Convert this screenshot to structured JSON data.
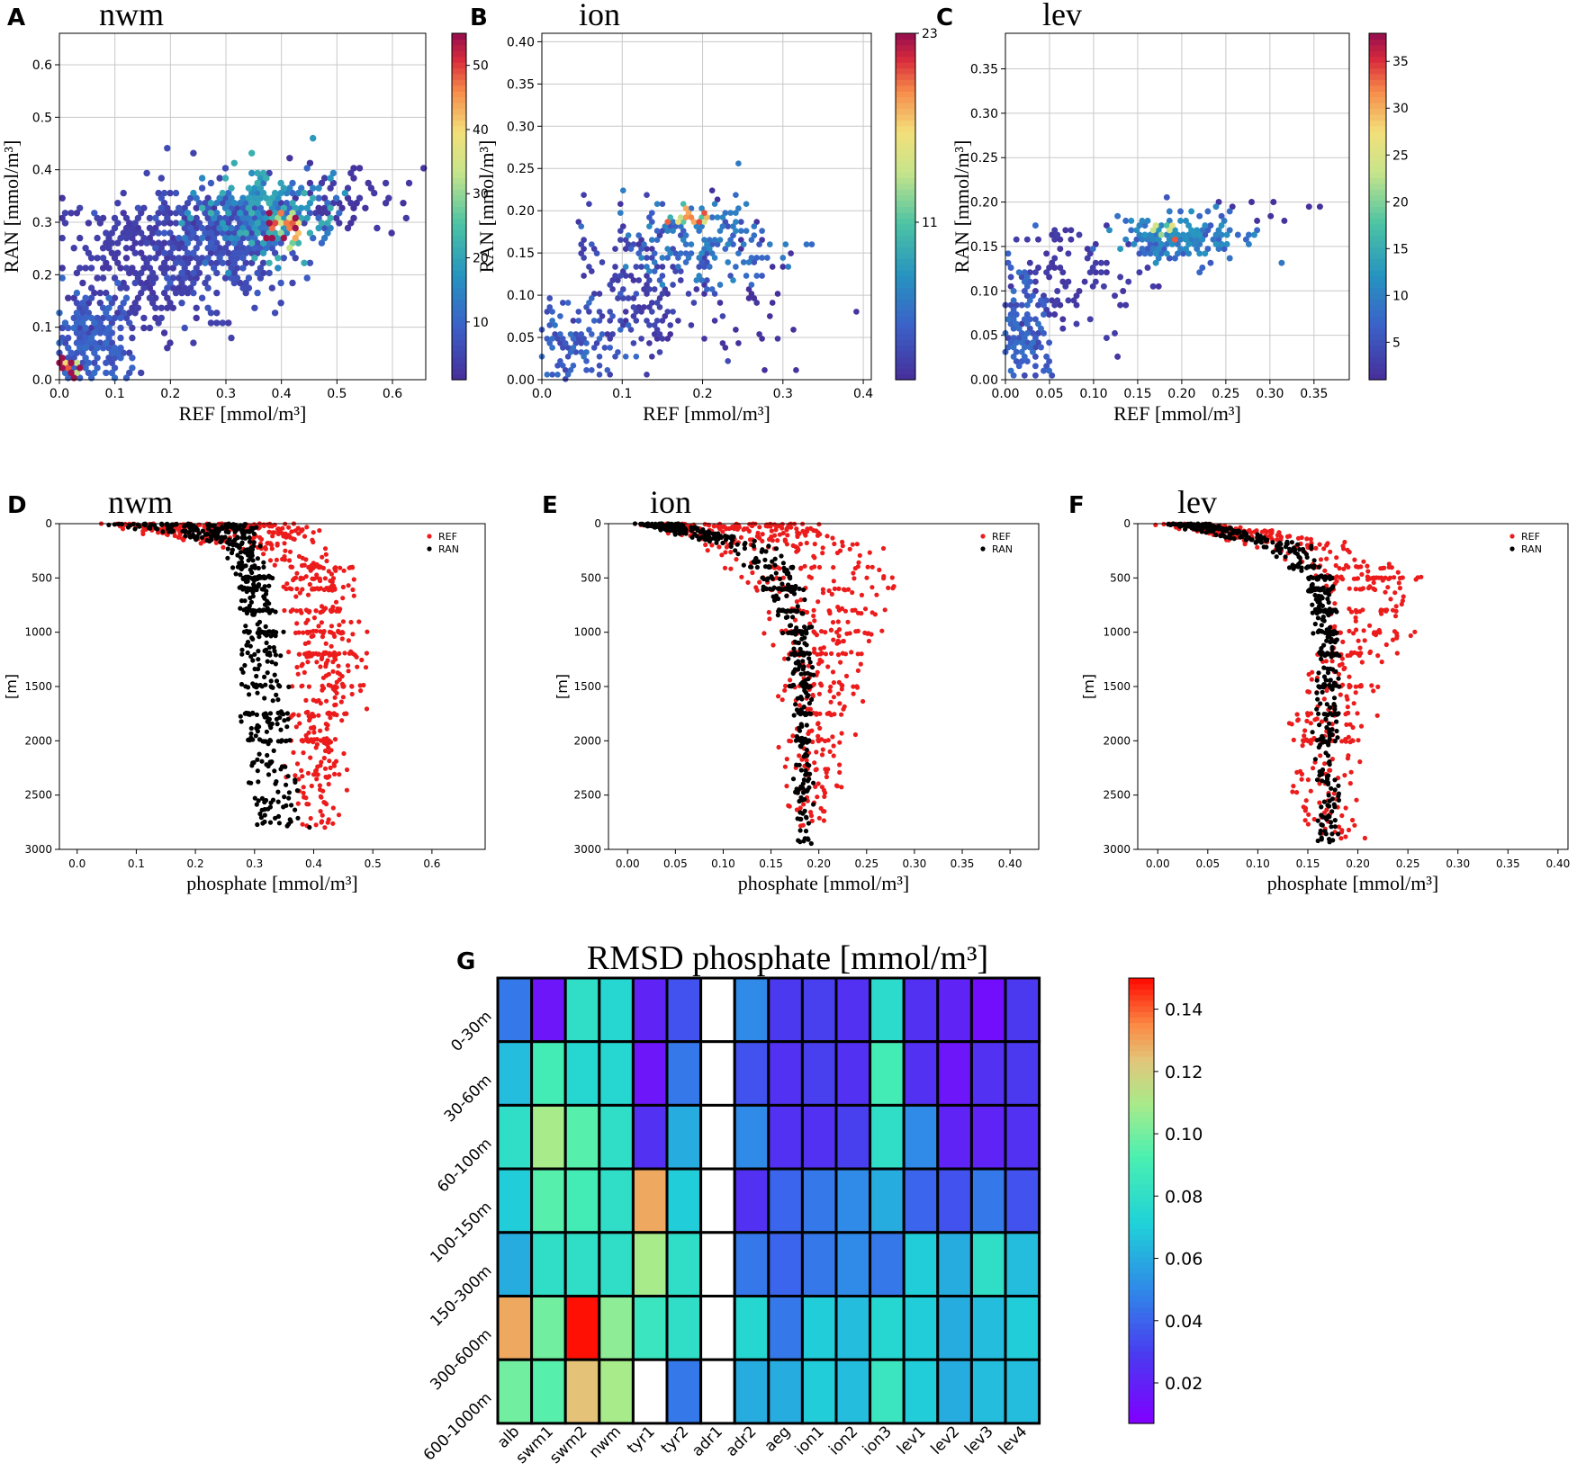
{
  "chart_data": [
    {
      "panel": "A",
      "title": "nwm",
      "type": "hexbin",
      "xlabel": "REF [mmol/m³]",
      "ylabel": "RAN [mmol/m³]",
      "xlim": [
        0,
        0.66
      ],
      "ylim": [
        0,
        0.66
      ],
      "xticks": [
        "0.0",
        "0.1",
        "0.2",
        "0.3",
        "0.4",
        "0.5",
        "0.6"
      ],
      "yticks": [
        "0.0",
        "0.1",
        "0.2",
        "0.3",
        "0.4",
        "0.5",
        "0.6"
      ],
      "colorbar": {
        "ticks": [
          "10",
          "20",
          "30",
          "40",
          "50"
        ],
        "tick_values": [
          10,
          20,
          30,
          40,
          50
        ],
        "range": [
          1,
          55
        ]
      },
      "clusters": [
        {
          "x": 0.05,
          "y": 0.06,
          "sx": 0.04,
          "sy": 0.06,
          "n": 260,
          "c": 8
        },
        {
          "x": 0.15,
          "y": 0.22,
          "sx": 0.08,
          "sy": 0.07,
          "n": 320,
          "c": 3
        },
        {
          "x": 0.3,
          "y": 0.27,
          "sx": 0.07,
          "sy": 0.05,
          "n": 320,
          "c": 6
        },
        {
          "x": 0.38,
          "y": 0.32,
          "sx": 0.06,
          "sy": 0.04,
          "n": 220,
          "c": 16
        },
        {
          "x": 0.4,
          "y": 0.29,
          "sx": 0.02,
          "sy": 0.015,
          "n": 30,
          "c": 45
        },
        {
          "x": 0.02,
          "y": 0.02,
          "sx": 0.01,
          "sy": 0.01,
          "n": 20,
          "c": 50
        },
        {
          "x": 0.5,
          "y": 0.34,
          "sx": 0.06,
          "sy": 0.03,
          "n": 60,
          "c": 2
        }
      ]
    },
    {
      "panel": "B",
      "title": "ion",
      "type": "hexbin",
      "xlabel": "REF [mmol/m³]",
      "ylabel": "RAN [mmol/m³]",
      "xlim": [
        0,
        0.41
      ],
      "ylim": [
        0,
        0.41
      ],
      "xticks": [
        "0.0",
        "0.1",
        "0.2",
        "0.3",
        "0.4"
      ],
      "yticks": [
        "0.00",
        "0.05",
        "0.10",
        "0.15",
        "0.20",
        "0.25",
        "0.30",
        "0.35",
        "0.40"
      ],
      "colorbar": {
        "ticks": [
          "11",
          "23"
        ],
        "tick_values": [
          11,
          23
        ],
        "range": [
          1,
          23
        ]
      },
      "clusters": [
        {
          "x": 0.04,
          "y": 0.04,
          "sx": 0.03,
          "sy": 0.03,
          "n": 140,
          "c": 4
        },
        {
          "x": 0.12,
          "y": 0.11,
          "sx": 0.04,
          "sy": 0.04,
          "n": 150,
          "c": 2
        },
        {
          "x": 0.2,
          "y": 0.16,
          "sx": 0.05,
          "sy": 0.025,
          "n": 180,
          "c": 5
        },
        {
          "x": 0.18,
          "y": 0.19,
          "sx": 0.02,
          "sy": 0.008,
          "n": 20,
          "c": 15
        },
        {
          "x": 0.25,
          "y": 0.1,
          "sx": 0.05,
          "sy": 0.05,
          "n": 40,
          "c": 1
        }
      ]
    },
    {
      "panel": "C",
      "title": "lev",
      "type": "hexbin",
      "xlabel": "REF [mmol/m³]",
      "ylabel": "RAN [mmol/m³]",
      "xlim": [
        0,
        0.39
      ],
      "ylim": [
        0,
        0.39
      ],
      "xticks": [
        "0.00",
        "0.05",
        "0.10",
        "0.15",
        "0.20",
        "0.25",
        "0.30",
        "0.35"
      ],
      "yticks": [
        "0.00",
        "0.05",
        "0.10",
        "0.15",
        "0.20",
        "0.25",
        "0.30",
        "0.35"
      ],
      "colorbar": {
        "ticks": [
          "5",
          "10",
          "15",
          "20",
          "25",
          "30",
          "35"
        ],
        "tick_values": [
          5,
          10,
          15,
          20,
          25,
          30,
          35
        ],
        "range": [
          1,
          38
        ]
      },
      "clusters": [
        {
          "x": 0.015,
          "y": 0.04,
          "sx": 0.015,
          "sy": 0.04,
          "n": 200,
          "c": 6
        },
        {
          "x": 0.08,
          "y": 0.12,
          "sx": 0.04,
          "sy": 0.03,
          "n": 100,
          "c": 2
        },
        {
          "x": 0.2,
          "y": 0.16,
          "sx": 0.035,
          "sy": 0.012,
          "n": 200,
          "c": 9
        },
        {
          "x": 0.18,
          "y": 0.17,
          "sx": 0.01,
          "sy": 0.005,
          "n": 10,
          "c": 28
        },
        {
          "x": 0.33,
          "y": 0.19,
          "sx": 0.04,
          "sy": 0.01,
          "n": 10,
          "c": 1
        }
      ]
    },
    {
      "panel": "D",
      "title": "nwm",
      "type": "scatter",
      "xlabel": "phosphate [mmol/m³]",
      "ylabel": "[m]",
      "xlim": [
        -0.03,
        0.69
      ],
      "ylim": [
        3000,
        0
      ],
      "xticks": [
        "0.0",
        "0.1",
        "0.2",
        "0.3",
        "0.4",
        "0.5",
        "0.6"
      ],
      "xtick_values": [
        0,
        0.1,
        0.2,
        0.3,
        0.4,
        0.5,
        0.6
      ],
      "yticks": [
        "0",
        "500",
        "1000",
        "1500",
        "2000",
        "2500",
        "3000"
      ],
      "legend": [
        "REF",
        "RAN"
      ],
      "series": [
        {
          "name": "REF",
          "color": "#ec1c1c",
          "profile": [
            [
              0,
              0.05,
              0.36
            ],
            [
              80,
              0.12,
              0.38
            ],
            [
              200,
              0.25,
              0.38
            ],
            [
              400,
              0.36,
              0.45
            ],
            [
              1000,
              0.38,
              0.46
            ],
            [
              1500,
              0.38,
              0.47
            ],
            [
              2000,
              0.38,
              0.44
            ],
            [
              2800,
              0.39,
              0.43
            ]
          ],
          "spread": 0.06,
          "n": 650
        },
        {
          "name": "RAN",
          "color": "#000000",
          "profile": [
            [
              0,
              0.05,
              0.3
            ],
            [
              80,
              0.15,
              0.3
            ],
            [
              200,
              0.25,
              0.3
            ],
            [
              500,
              0.28,
              0.32
            ],
            [
              1500,
              0.28,
              0.35
            ],
            [
              2500,
              0.3,
              0.37
            ],
            [
              2800,
              0.3,
              0.38
            ]
          ],
          "spread": 0.025,
          "n": 550
        }
      ]
    },
    {
      "panel": "E",
      "title": "ion",
      "type": "scatter",
      "xlabel": "phosphate [mmol/m³]",
      "ylabel": "[m]",
      "xlim": [
        -0.02,
        0.43
      ],
      "ylim": [
        3000,
        0
      ],
      "xticks": [
        "0.00",
        "0.05",
        "0.10",
        "0.15",
        "0.20",
        "0.25",
        "0.30",
        "0.35",
        "0.40"
      ],
      "xtick_values": [
        0,
        0.05,
        0.1,
        0.15,
        0.2,
        0.25,
        0.3,
        0.35,
        0.4
      ],
      "yticks": [
        "0",
        "500",
        "1000",
        "1500",
        "2000",
        "2500",
        "3000"
      ],
      "legend": [
        "REF",
        "RAN"
      ],
      "series": [
        {
          "name": "REF",
          "color": "#ec1c1c",
          "profile": [
            [
              0,
              0.02,
              0.18
            ],
            [
              200,
              0.08,
              0.26
            ],
            [
              500,
              0.12,
              0.27
            ],
            [
              1000,
              0.16,
              0.26
            ],
            [
              1500,
              0.17,
              0.23
            ],
            [
              2000,
              0.17,
              0.22
            ],
            [
              2800,
              0.17,
              0.21
            ]
          ],
          "spread": 0.04,
          "n": 520
        },
        {
          "name": "RAN",
          "color": "#000000",
          "profile": [
            [
              0,
              0.01,
              0.05
            ],
            [
              200,
              0.1,
              0.15
            ],
            [
              500,
              0.14,
              0.18
            ],
            [
              1000,
              0.17,
              0.19
            ],
            [
              2000,
              0.18,
              0.19
            ],
            [
              2950,
              0.18,
              0.19
            ]
          ],
          "spread": 0.012,
          "n": 480
        }
      ]
    },
    {
      "panel": "F",
      "title": "lev",
      "type": "scatter",
      "xlabel": "phosphate [mmol/m³]",
      "ylabel": "[m]",
      "xlim": [
        -0.02,
        0.41
      ],
      "ylim": [
        3000,
        0
      ],
      "xticks": [
        "0.00",
        "0.05",
        "0.10",
        "0.15",
        "0.20",
        "0.25",
        "0.30",
        "0.35",
        "0.40"
      ],
      "xtick_values": [
        0,
        0.05,
        0.1,
        0.15,
        0.2,
        0.25,
        0.3,
        0.35,
        0.4
      ],
      "yticks": [
        "0",
        "500",
        "1000",
        "1500",
        "2000",
        "2500",
        "3000"
      ],
      "legend": [
        "REF",
        "RAN"
      ],
      "series": [
        {
          "name": "REF",
          "color": "#ec1c1c",
          "profile": [
            [
              0,
              0.01,
              0.05
            ],
            [
              200,
              0.1,
              0.2
            ],
            [
              500,
              0.17,
              0.26
            ],
            [
              1000,
              0.17,
              0.24
            ],
            [
              1500,
              0.15,
              0.21
            ],
            [
              2000,
              0.14,
              0.2
            ],
            [
              2900,
              0.15,
              0.19
            ]
          ],
          "spread": 0.03,
          "n": 520
        },
        {
          "name": "RAN",
          "color": "#000000",
          "profile": [
            [
              0,
              0.01,
              0.05
            ],
            [
              200,
              0.1,
              0.15
            ],
            [
              500,
              0.15,
              0.17
            ],
            [
              1000,
              0.16,
              0.18
            ],
            [
              2000,
              0.16,
              0.18
            ],
            [
              2950,
              0.16,
              0.18
            ]
          ],
          "spread": 0.01,
          "n": 480
        }
      ]
    },
    {
      "panel": "G",
      "type": "heatmap",
      "title": "RMSD phosphate [mmol/m³]",
      "columns": [
        "alb",
        "swm1",
        "swm2",
        "nwm",
        "tyr1",
        "tyr2",
        "adr1",
        "adr2",
        "aeg",
        "ion1",
        "ion2",
        "ion3",
        "lev1",
        "lev2",
        "lev3",
        "lev4"
      ],
      "rows": [
        "0-30m",
        "30-60m",
        "60-100m",
        "100-150m",
        "150-300m",
        "300-600m",
        "600-1000m"
      ],
      "values": [
        [
          0.045,
          0.015,
          0.08,
          0.075,
          0.02,
          0.035,
          null,
          0.05,
          0.028,
          0.03,
          0.025,
          0.078,
          0.025,
          0.02,
          0.012,
          0.028
        ],
        [
          0.065,
          0.09,
          0.075,
          0.075,
          0.015,
          0.045,
          null,
          0.035,
          0.025,
          0.03,
          0.025,
          0.09,
          0.025,
          0.015,
          0.025,
          0.028
        ],
        [
          0.08,
          0.11,
          0.095,
          0.08,
          0.025,
          0.06,
          null,
          0.05,
          0.025,
          0.025,
          0.03,
          0.08,
          0.05,
          0.02,
          0.02,
          0.025
        ],
        [
          0.07,
          0.095,
          0.09,
          0.08,
          0.13,
          0.07,
          null,
          0.025,
          0.04,
          0.045,
          0.05,
          0.06,
          0.04,
          0.035,
          0.045,
          0.035
        ],
        [
          0.06,
          0.08,
          0.08,
          0.08,
          0.11,
          0.08,
          null,
          0.045,
          0.04,
          0.045,
          0.05,
          0.045,
          0.07,
          0.06,
          0.08,
          0.065
        ],
        [
          0.13,
          0.1,
          0.15,
          0.105,
          0.085,
          0.08,
          null,
          0.075,
          0.045,
          0.07,
          0.065,
          0.075,
          0.07,
          0.06,
          0.065,
          0.07
        ],
        [
          0.1,
          0.095,
          0.125,
          0.11,
          null,
          0.045,
          null,
          0.06,
          0.06,
          0.07,
          0.065,
          0.085,
          0.07,
          0.06,
          0.065,
          0.065
        ]
      ],
      "colorbar": {
        "ticks": [
          "0.02",
          "0.04",
          "0.06",
          "0.08",
          "0.10",
          "0.12",
          "0.14"
        ],
        "tick_values": [
          0.02,
          0.04,
          0.06,
          0.08,
          0.1,
          0.12,
          0.14
        ],
        "range": [
          0.007,
          0.15
        ]
      }
    }
  ]
}
